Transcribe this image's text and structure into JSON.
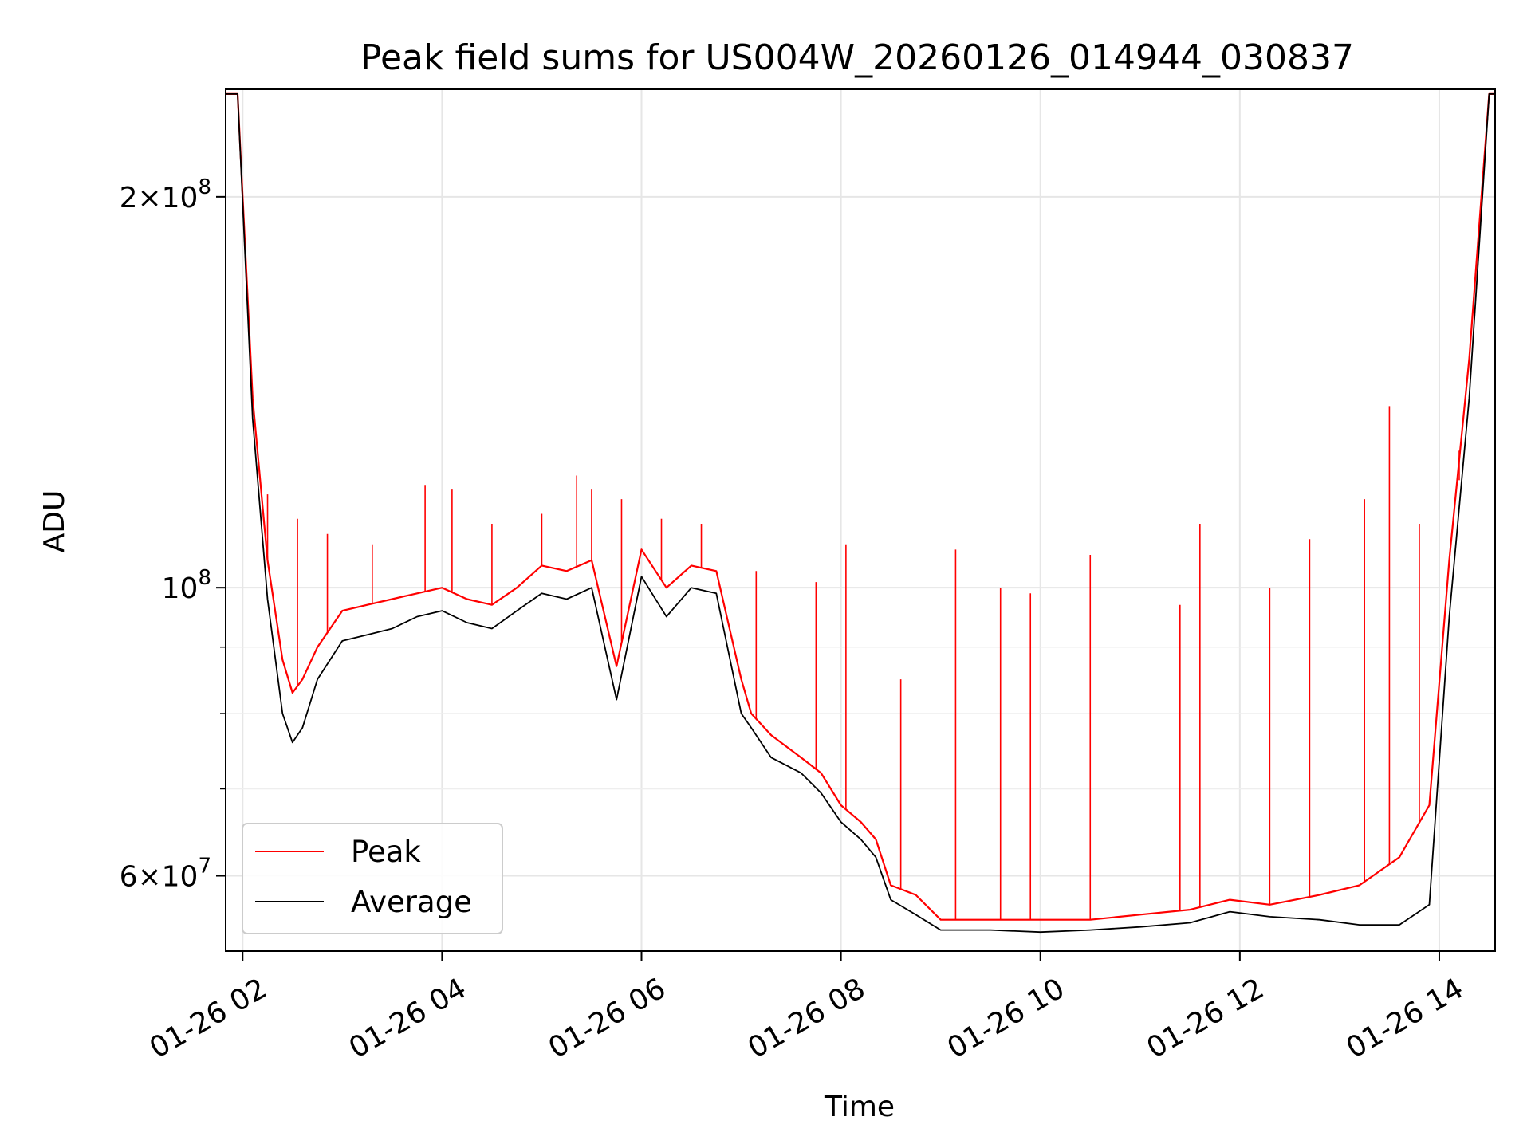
{
  "chart_data": {
    "type": "line",
    "title": "Peak field sums for US004W_20260126_014944_030837",
    "xlabel": "Time",
    "ylabel": "ADU",
    "yscale": "log",
    "grid": true,
    "legend_position": "lower-left",
    "xlim_hours": [
      1.83,
      14.56
    ],
    "ylim": [
      52500000,
      242000000
    ],
    "x_ticks": [
      {
        "hour": 2,
        "label": "01-26 02"
      },
      {
        "hour": 4,
        "label": "01-26 04"
      },
      {
        "hour": 6,
        "label": "01-26 06"
      },
      {
        "hour": 8,
        "label": "01-26 08"
      },
      {
        "hour": 10,
        "label": "01-26 10"
      },
      {
        "hour": 12,
        "label": "01-26 12"
      },
      {
        "hour": 14,
        "label": "01-26 14"
      }
    ],
    "y_major_ticks": [
      {
        "value": 60000000,
        "mantissa": "6",
        "exponent": "7"
      },
      {
        "value": 100000000,
        "mantissa": "",
        "exponent": "8"
      },
      {
        "value": 200000000,
        "mantissa": "2",
        "exponent": "8"
      }
    ],
    "y_minor_ticks": [
      70000000,
      80000000,
      90000000
    ],
    "tick_base": "10",
    "tick_times": "×",
    "series": [
      {
        "name": "Peak",
        "color": "#ff0000",
        "x_hours": [
          1.83,
          1.95,
          2.0,
          2.1,
          2.25,
          2.4,
          2.5,
          2.6,
          2.75,
          3.0,
          3.25,
          3.5,
          3.75,
          4.0,
          4.25,
          4.5,
          4.75,
          5.0,
          5.25,
          5.5,
          5.75,
          6.0,
          6.25,
          6.5,
          6.75,
          7.0,
          7.1,
          7.3,
          7.6,
          7.8,
          8.0,
          8.2,
          8.35,
          8.5,
          8.75,
          9.0,
          9.5,
          10.0,
          10.5,
          11.0,
          11.5,
          11.9,
          12.3,
          12.8,
          13.2,
          13.6,
          13.9,
          14.1,
          14.3,
          14.5,
          14.56
        ],
        "values": [
          240000000,
          240000000,
          200000000,
          140000000,
          105000000,
          88000000,
          83000000,
          85000000,
          90000000,
          96000000,
          97000000,
          98000000,
          99000000,
          100000000,
          98000000,
          97000000,
          100000000,
          104000000,
          103000000,
          105000000,
          87000000,
          107000000,
          100000000,
          104000000,
          103000000,
          85000000,
          80000000,
          77000000,
          74000000,
          72000000,
          68000000,
          66000000,
          64000000,
          59000000,
          58000000,
          55500000,
          55500000,
          55500000,
          55500000,
          56000000,
          56500000,
          57500000,
          57000000,
          58000000,
          59000000,
          62000000,
          68000000,
          105000000,
          150000000,
          240000000,
          240000000
        ],
        "spikes": [
          {
            "hour": 2.25,
            "value": 118000000
          },
          {
            "hour": 2.55,
            "value": 113000000
          },
          {
            "hour": 2.85,
            "value": 110000000
          },
          {
            "hour": 3.3,
            "value": 108000000
          },
          {
            "hour": 3.83,
            "value": 120000000
          },
          {
            "hour": 4.1,
            "value": 119000000
          },
          {
            "hour": 4.5,
            "value": 112000000
          },
          {
            "hour": 5.0,
            "value": 114000000
          },
          {
            "hour": 5.35,
            "value": 122000000
          },
          {
            "hour": 5.5,
            "value": 119000000
          },
          {
            "hour": 5.8,
            "value": 117000000
          },
          {
            "hour": 6.2,
            "value": 113000000
          },
          {
            "hour": 6.6,
            "value": 112000000
          },
          {
            "hour": 7.15,
            "value": 103000000
          },
          {
            "hour": 7.75,
            "value": 101000000
          },
          {
            "hour": 8.05,
            "value": 108000000
          },
          {
            "hour": 8.6,
            "value": 85000000
          },
          {
            "hour": 9.15,
            "value": 107000000
          },
          {
            "hour": 9.6,
            "value": 100000000
          },
          {
            "hour": 9.9,
            "value": 99000000
          },
          {
            "hour": 10.5,
            "value": 106000000
          },
          {
            "hour": 11.4,
            "value": 97000000
          },
          {
            "hour": 11.6,
            "value": 112000000
          },
          {
            "hour": 12.3,
            "value": 100000000
          },
          {
            "hour": 12.7,
            "value": 109000000
          },
          {
            "hour": 13.25,
            "value": 117000000
          },
          {
            "hour": 13.5,
            "value": 138000000
          },
          {
            "hour": 13.8,
            "value": 112000000
          },
          {
            "hour": 14.2,
            "value": 121000000
          }
        ]
      },
      {
        "name": "Average",
        "color": "#000000",
        "x_hours": [
          1.83,
          1.95,
          2.0,
          2.1,
          2.25,
          2.4,
          2.5,
          2.6,
          2.75,
          3.0,
          3.25,
          3.5,
          3.75,
          4.0,
          4.25,
          4.5,
          4.75,
          5.0,
          5.25,
          5.5,
          5.75,
          6.0,
          6.25,
          6.5,
          6.75,
          7.0,
          7.1,
          7.3,
          7.6,
          7.8,
          8.0,
          8.2,
          8.35,
          8.5,
          8.75,
          9.0,
          9.5,
          10.0,
          10.5,
          11.0,
          11.5,
          11.9,
          12.3,
          12.8,
          13.2,
          13.6,
          13.9,
          14.1,
          14.3,
          14.5,
          14.56
        ],
        "values": [
          240000000,
          240000000,
          198000000,
          135000000,
          98000000,
          80000000,
          76000000,
          78000000,
          85000000,
          91000000,
          92000000,
          93000000,
          95000000,
          96000000,
          94000000,
          93000000,
          96000000,
          99000000,
          98000000,
          100000000,
          82000000,
          102000000,
          95000000,
          100000000,
          99000000,
          80000000,
          78000000,
          74000000,
          72000000,
          69500000,
          66000000,
          64000000,
          62000000,
          57500000,
          56000000,
          54500000,
          54500000,
          54300000,
          54500000,
          54800000,
          55200000,
          56300000,
          55800000,
          55500000,
          55000000,
          55000000,
          57000000,
          95000000,
          140000000,
          240000000,
          240000000
        ]
      }
    ]
  }
}
